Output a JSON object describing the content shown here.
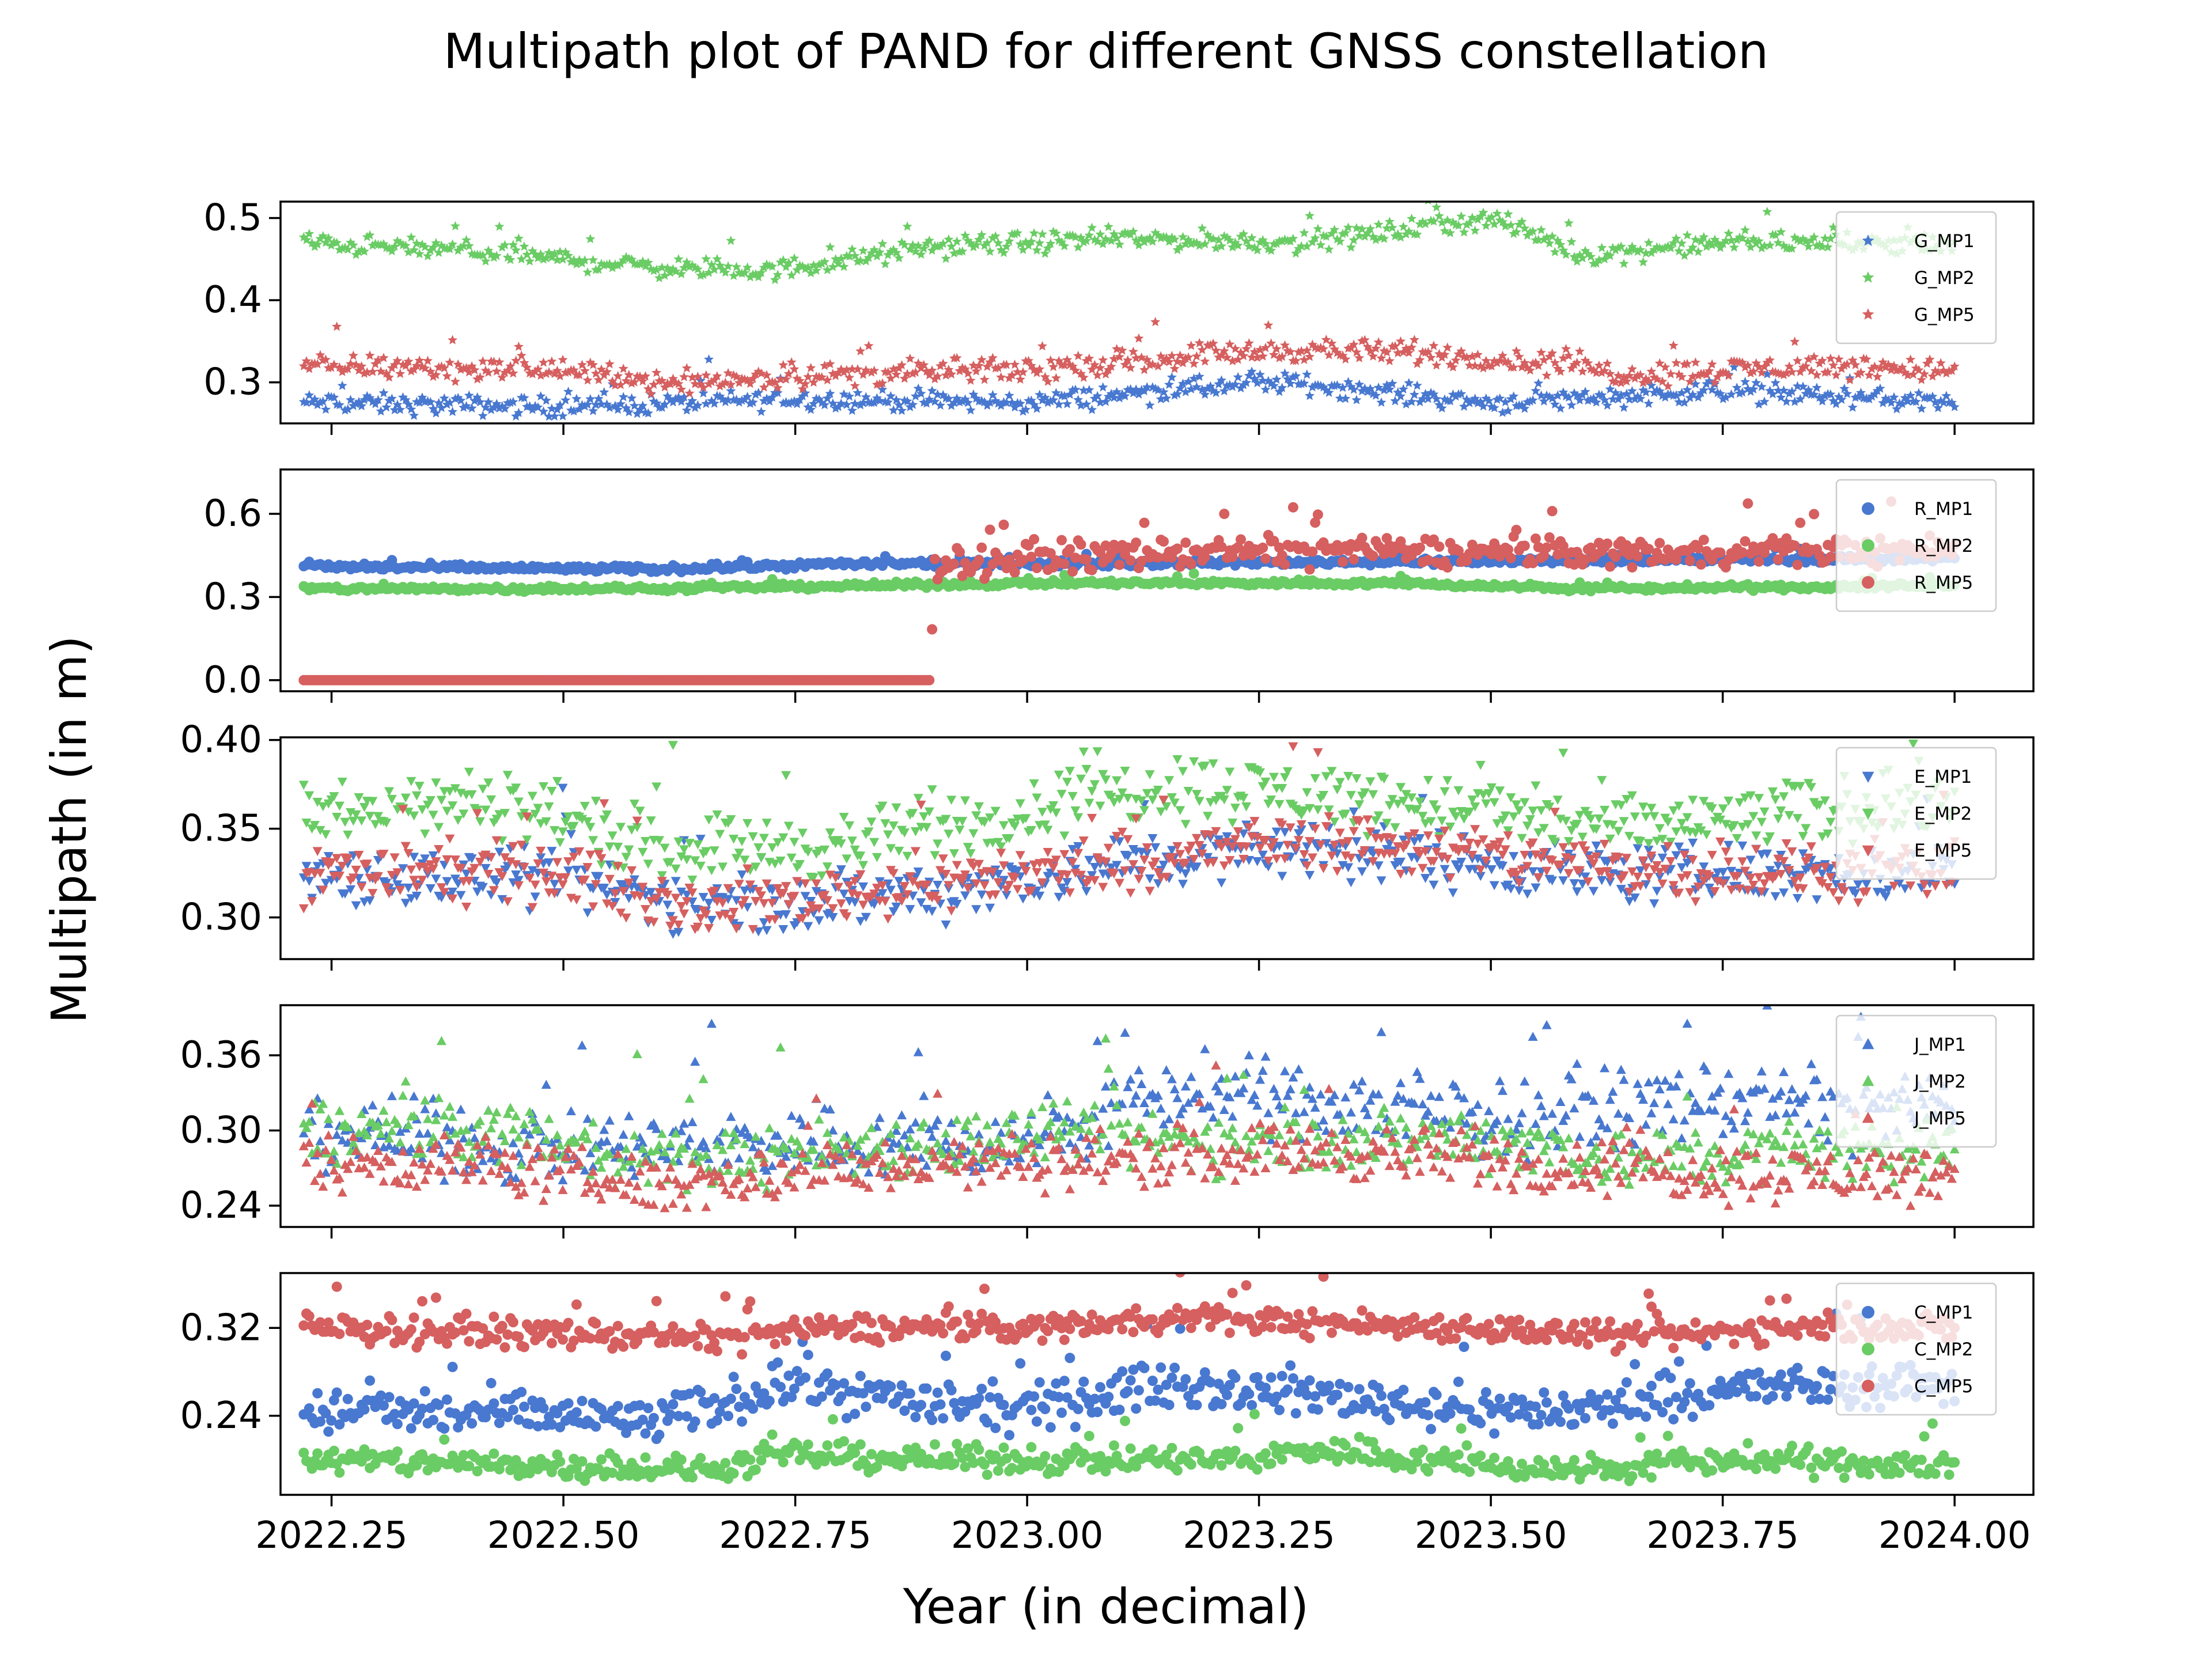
{
  "chart_data": {
    "type": "scatter",
    "title": "Multipath plot of PAND for different GNSS constellation",
    "xlabel": "Year (in decimal)",
    "ylabel": "Multipath (in m)",
    "xlim": [
      2022.195,
      2024.085
    ],
    "x_ticks": [
      "2022.25",
      "2022.50",
      "2022.75",
      "2023.00",
      "2023.25",
      "2023.50",
      "2023.75",
      "2024.00"
    ],
    "x_tick_values": [
      2022.25,
      2022.5,
      2022.75,
      2023.0,
      2023.25,
      2023.5,
      2023.75,
      2024.0
    ],
    "x_range_data": [
      2022.22,
      2024.0
    ],
    "colors": {
      "MP1": "#4878d0",
      "MP2": "#6acc64",
      "MP5": "#d65f5f"
    },
    "legend_position": "top-right",
    "panels": [
      {
        "id": "G",
        "marker": "star",
        "ylim": [
          0.25,
          0.52
        ],
        "yticks": [
          0.3,
          0.4,
          0.5
        ],
        "ytick_labels": [
          "0.3",
          "0.4",
          "0.5"
        ],
        "series": [
          {
            "name": "G_MP1",
            "x": [
              2022.22,
              2022.5,
              2022.75,
              2023.0,
              2023.15,
              2023.28,
              2023.5,
              2023.75,
              2024.0
            ],
            "y": [
              0.275,
              0.27,
              0.28,
              0.275,
              0.29,
              0.3,
              0.275,
              0.29,
              0.275
            ],
            "noise": 0.006
          },
          {
            "name": "G_MP2",
            "x": [
              2022.22,
              2022.4,
              2022.6,
              2022.72,
              2022.9,
              2023.1,
              2023.3,
              2023.5,
              2023.6,
              2023.75,
              2024.0
            ],
            "y": [
              0.47,
              0.46,
              0.44,
              0.435,
              0.465,
              0.475,
              0.47,
              0.5,
              0.455,
              0.47,
              0.47
            ],
            "noise": 0.006
          },
          {
            "name": "G_MP5",
            "x": [
              2022.22,
              2022.5,
              2022.6,
              2022.8,
              2023.0,
              2023.2,
              2023.3,
              2023.5,
              2023.65,
              2023.85,
              2024.0
            ],
            "y": [
              0.32,
              0.315,
              0.3,
              0.31,
              0.315,
              0.335,
              0.34,
              0.33,
              0.31,
              0.32,
              0.315
            ],
            "noise": 0.007
          }
        ]
      },
      {
        "id": "R",
        "marker": "circle",
        "ylim": [
          -0.04,
          0.76
        ],
        "yticks": [
          0.0,
          0.3,
          0.6
        ],
        "ytick_labels": [
          "0.0",
          "0.3",
          "0.6"
        ],
        "series": [
          {
            "name": "R_MP1",
            "x": [
              2022.22,
              2022.6,
              2022.8,
              2023.0,
              2023.5,
              2024.0
            ],
            "y": [
              0.41,
              0.4,
              0.42,
              0.42,
              0.43,
              0.44
            ],
            "noise": 0.006
          },
          {
            "name": "R_MP2",
            "x": [
              2022.22,
              2022.6,
              2023.0,
              2023.4,
              2023.6,
              2024.0
            ],
            "y": [
              0.33,
              0.33,
              0.35,
              0.35,
              0.33,
              0.34
            ],
            "noise": 0.005
          },
          {
            "name": "R_MP5",
            "x": [
              2022.22,
              2022.895,
              2022.9,
              2023.05,
              2023.3,
              2023.5,
              2024.0
            ],
            "y": [
              0.0,
              0.0,
              0.42,
              0.45,
              0.47,
              0.46,
              0.47
            ],
            "noise": 0.025
          }
        ]
      },
      {
        "id": "E",
        "marker": "triangle-down",
        "ylim": [
          0.2765,
          0.4015
        ],
        "yticks": [
          0.3,
          0.35,
          0.4
        ],
        "ytick_labels": [
          "0.30",
          "0.35",
          "0.40"
        ],
        "series": [
          {
            "name": "E_MP1",
            "x": [
              2022.22,
              2022.5,
              2022.7,
              2022.9,
              2023.1,
              2023.3,
              2023.6,
              2023.8,
              2024.0
            ],
            "y": [
              0.325,
              0.32,
              0.305,
              0.315,
              0.33,
              0.34,
              0.325,
              0.325,
              0.325
            ],
            "noise": 0.008
          },
          {
            "name": "E_MP2",
            "x": [
              2022.22,
              2022.45,
              2022.6,
              2022.8,
              2023.0,
              2023.15,
              2023.3,
              2023.5,
              2023.65,
              2023.85,
              2024.0
            ],
            "y": [
              0.36,
              0.365,
              0.34,
              0.34,
              0.36,
              0.375,
              0.37,
              0.36,
              0.35,
              0.36,
              0.365
            ],
            "noise": 0.009
          },
          {
            "name": "E_MP5",
            "x": [
              2022.22,
              2022.5,
              2022.65,
              2022.9,
              2023.1,
              2023.3,
              2023.6,
              2023.8,
              2024.0
            ],
            "y": [
              0.325,
              0.325,
              0.305,
              0.32,
              0.33,
              0.345,
              0.33,
              0.325,
              0.325
            ],
            "noise": 0.008
          }
        ]
      },
      {
        "id": "J",
        "marker": "triangle-up",
        "ylim": [
          0.223,
          0.4
        ],
        "yticks": [
          0.24,
          0.3,
          0.36
        ],
        "ytick_labels": [
          "0.24",
          "0.30",
          "0.36"
        ],
        "series": [
          {
            "name": "J_MP1",
            "x": [
              2022.22,
              2022.5,
              2022.75,
              2023.0,
              2023.15,
              2023.3,
              2023.5,
              2023.75,
              2024.0
            ],
            "y": [
              0.3,
              0.285,
              0.29,
              0.29,
              0.33,
              0.325,
              0.31,
              0.325,
              0.315
            ],
            "noise": 0.014
          },
          {
            "name": "J_MP2",
            "x": [
              2022.22,
              2022.45,
              2022.6,
              2022.8,
              2023.0,
              2023.3,
              2023.5,
              2023.65,
              2023.85,
              2024.0
            ],
            "y": [
              0.3,
              0.3,
              0.275,
              0.285,
              0.295,
              0.29,
              0.295,
              0.275,
              0.285,
              0.285
            ],
            "noise": 0.012
          },
          {
            "name": "J_MP5",
            "x": [
              2022.22,
              2022.4,
              2022.6,
              2022.8,
              2023.0,
              2023.3,
              2023.6,
              2023.8,
              2024.0
            ],
            "y": [
              0.275,
              0.275,
              0.255,
              0.27,
              0.275,
              0.285,
              0.27,
              0.265,
              0.265
            ],
            "noise": 0.011
          }
        ]
      },
      {
        "id": "C",
        "marker": "circle",
        "ylim": [
          0.168,
          0.37
        ],
        "yticks": [
          0.24,
          0.32
        ],
        "ytick_labels": [
          "0.24",
          "0.32"
        ],
        "series": [
          {
            "name": "C_MP1",
            "x": [
              2022.22,
              2022.5,
              2022.6,
              2022.75,
              2022.9,
              2023.0,
              2023.15,
              2023.3,
              2023.5,
              2023.6,
              2023.75,
              2024.0
            ],
            "y": [
              0.245,
              0.24,
              0.235,
              0.27,
              0.25,
              0.245,
              0.27,
              0.26,
              0.245,
              0.245,
              0.265,
              0.27
            ],
            "noise": 0.01
          },
          {
            "name": "C_MP2",
            "x": [
              2022.22,
              2022.5,
              2022.65,
              2022.75,
              2022.9,
              2023.1,
              2023.25,
              2023.3,
              2023.5,
              2023.6,
              2023.75,
              2024.0
            ],
            "y": [
              0.2,
              0.195,
              0.19,
              0.205,
              0.2,
              0.2,
              0.2,
              0.21,
              0.195,
              0.19,
              0.2,
              0.195
            ],
            "noise": 0.006
          },
          {
            "name": "C_MP5",
            "x": [
              2022.22,
              2022.5,
              2022.65,
              2022.8,
              2023.0,
              2023.15,
              2023.3,
              2023.5,
              2023.65,
              2023.8,
              2024.0
            ],
            "y": [
              0.32,
              0.315,
              0.31,
              0.32,
              0.32,
              0.33,
              0.325,
              0.32,
              0.31,
              0.32,
              0.32
            ],
            "noise": 0.006
          }
        ]
      }
    ]
  }
}
